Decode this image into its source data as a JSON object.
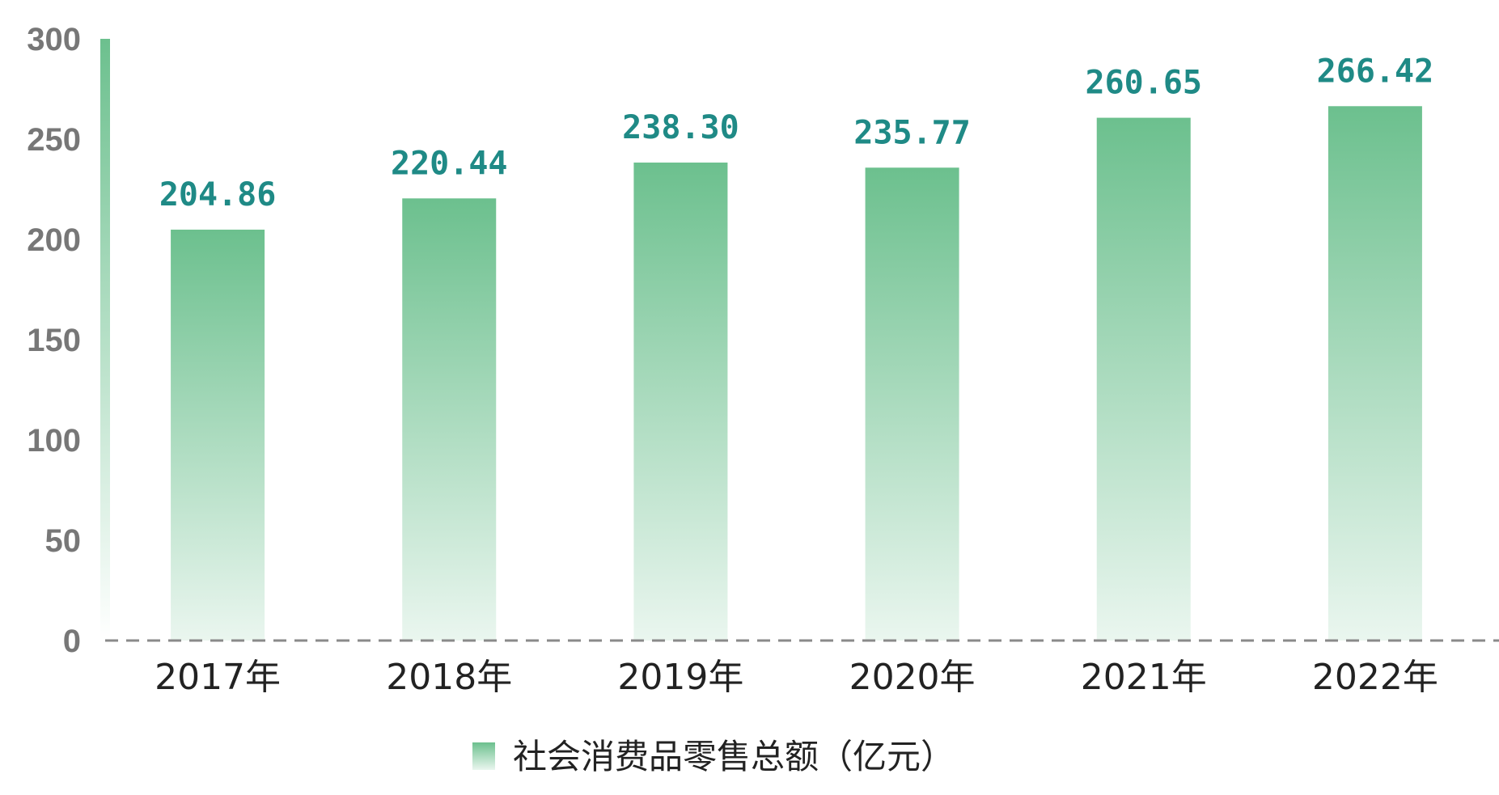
{
  "chart_data": {
    "type": "bar",
    "categories": [
      "2017年",
      "2018年",
      "2019年",
      "2020年",
      "2021年",
      "2022年"
    ],
    "series": [
      {
        "name": "社会消费品零售总额（亿元）",
        "values": [
          204.86,
          220.44,
          238.3,
          235.77,
          260.65,
          266.42
        ],
        "value_labels": [
          "204.86",
          "220.44",
          "238.30",
          "235.77",
          "260.65",
          "266.42"
        ]
      }
    ],
    "ylim": [
      0,
      300
    ],
    "yticks": [
      0,
      50,
      100,
      150,
      200,
      250,
      300
    ],
    "grid": false,
    "legend_position": "bottom-center",
    "colors": {
      "bar_top": "#6cc08e",
      "bar_bottom": "#eaf6ef",
      "value_label": "#1f8a86",
      "axis_baseline": "#8a8a8a"
    }
  }
}
